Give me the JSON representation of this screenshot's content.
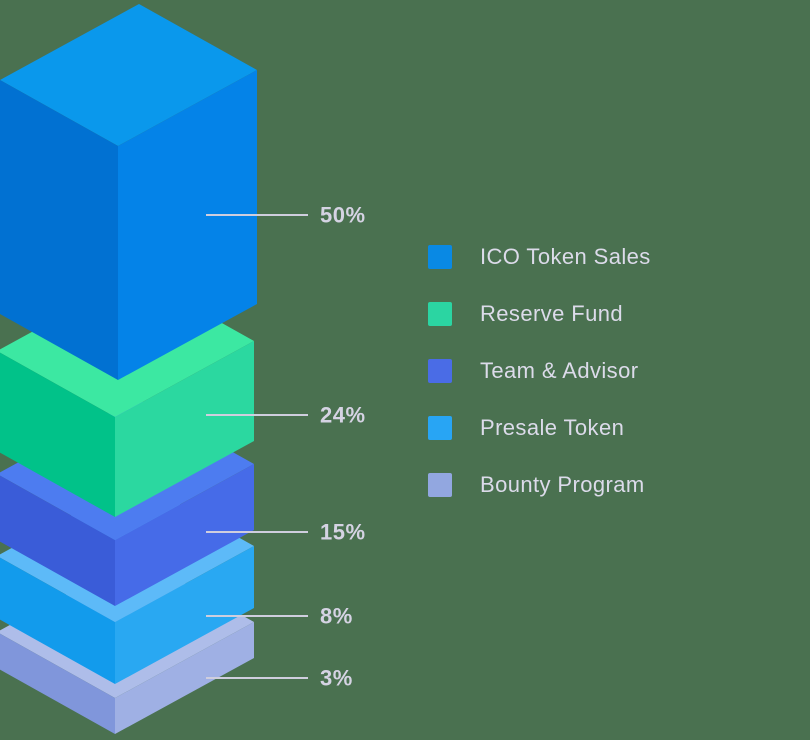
{
  "background_color": "#4a7150",
  "chart_data": {
    "type": "bar",
    "variant": "isometric-stacked-blocks",
    "title": "",
    "categories": [
      "ICO Token Sales",
      "Reserve Fund",
      "Team & Advisor",
      "Presale Token",
      "Bounty Program"
    ],
    "values": [
      50,
      24,
      15,
      8,
      3
    ],
    "unit": "%",
    "value_labels": [
      "50%",
      "24%",
      "15%",
      "8%",
      "3%"
    ],
    "legend_position": "right",
    "series_colors": [
      "#0989e4",
      "#2bd5a2",
      "#4a6ce6",
      "#28a5f4",
      "#92a7e0"
    ]
  },
  "blocks": [
    {
      "name": "ICO Token Sales",
      "label": "50%",
      "faces": {
        "top": "#0a98ec",
        "left": "#0171d2",
        "right": "#0483e8"
      }
    },
    {
      "name": "Reserve Fund",
      "label": "24%",
      "faces": {
        "top": "#3ce8a2",
        "left": "#01c289",
        "right": "#2bd8a0"
      }
    },
    {
      "name": "Team & Advisor",
      "label": "15%",
      "faces": {
        "top": "#4d7cf0",
        "left": "#3a5cd8",
        "right": "#466be8"
      }
    },
    {
      "name": "Presale Token",
      "label": "8%",
      "faces": {
        "top": "#5dbaf8",
        "left": "#129bec",
        "right": "#29a8f2"
      }
    },
    {
      "name": "Bounty Program",
      "label": "3%",
      "faces": {
        "top": "#aebde9",
        "left": "#8096db",
        "right": "#9fb0e4"
      }
    }
  ],
  "legend": {
    "items": [
      {
        "label": "ICO Token Sales",
        "color": "#0989e4"
      },
      {
        "label": "Reserve Fund",
        "color": "#2bd5a2"
      },
      {
        "label": "Team & Advisor",
        "color": "#4a6ce6"
      },
      {
        "label": "Presale Token",
        "color": "#28a5f4"
      },
      {
        "label": "Bounty Program",
        "color": "#92a7e0"
      }
    ]
  },
  "callout": {
    "line_color": "#cfcede",
    "text_color": "#d5d3e3",
    "legend_text_color": "#dcdbea"
  }
}
